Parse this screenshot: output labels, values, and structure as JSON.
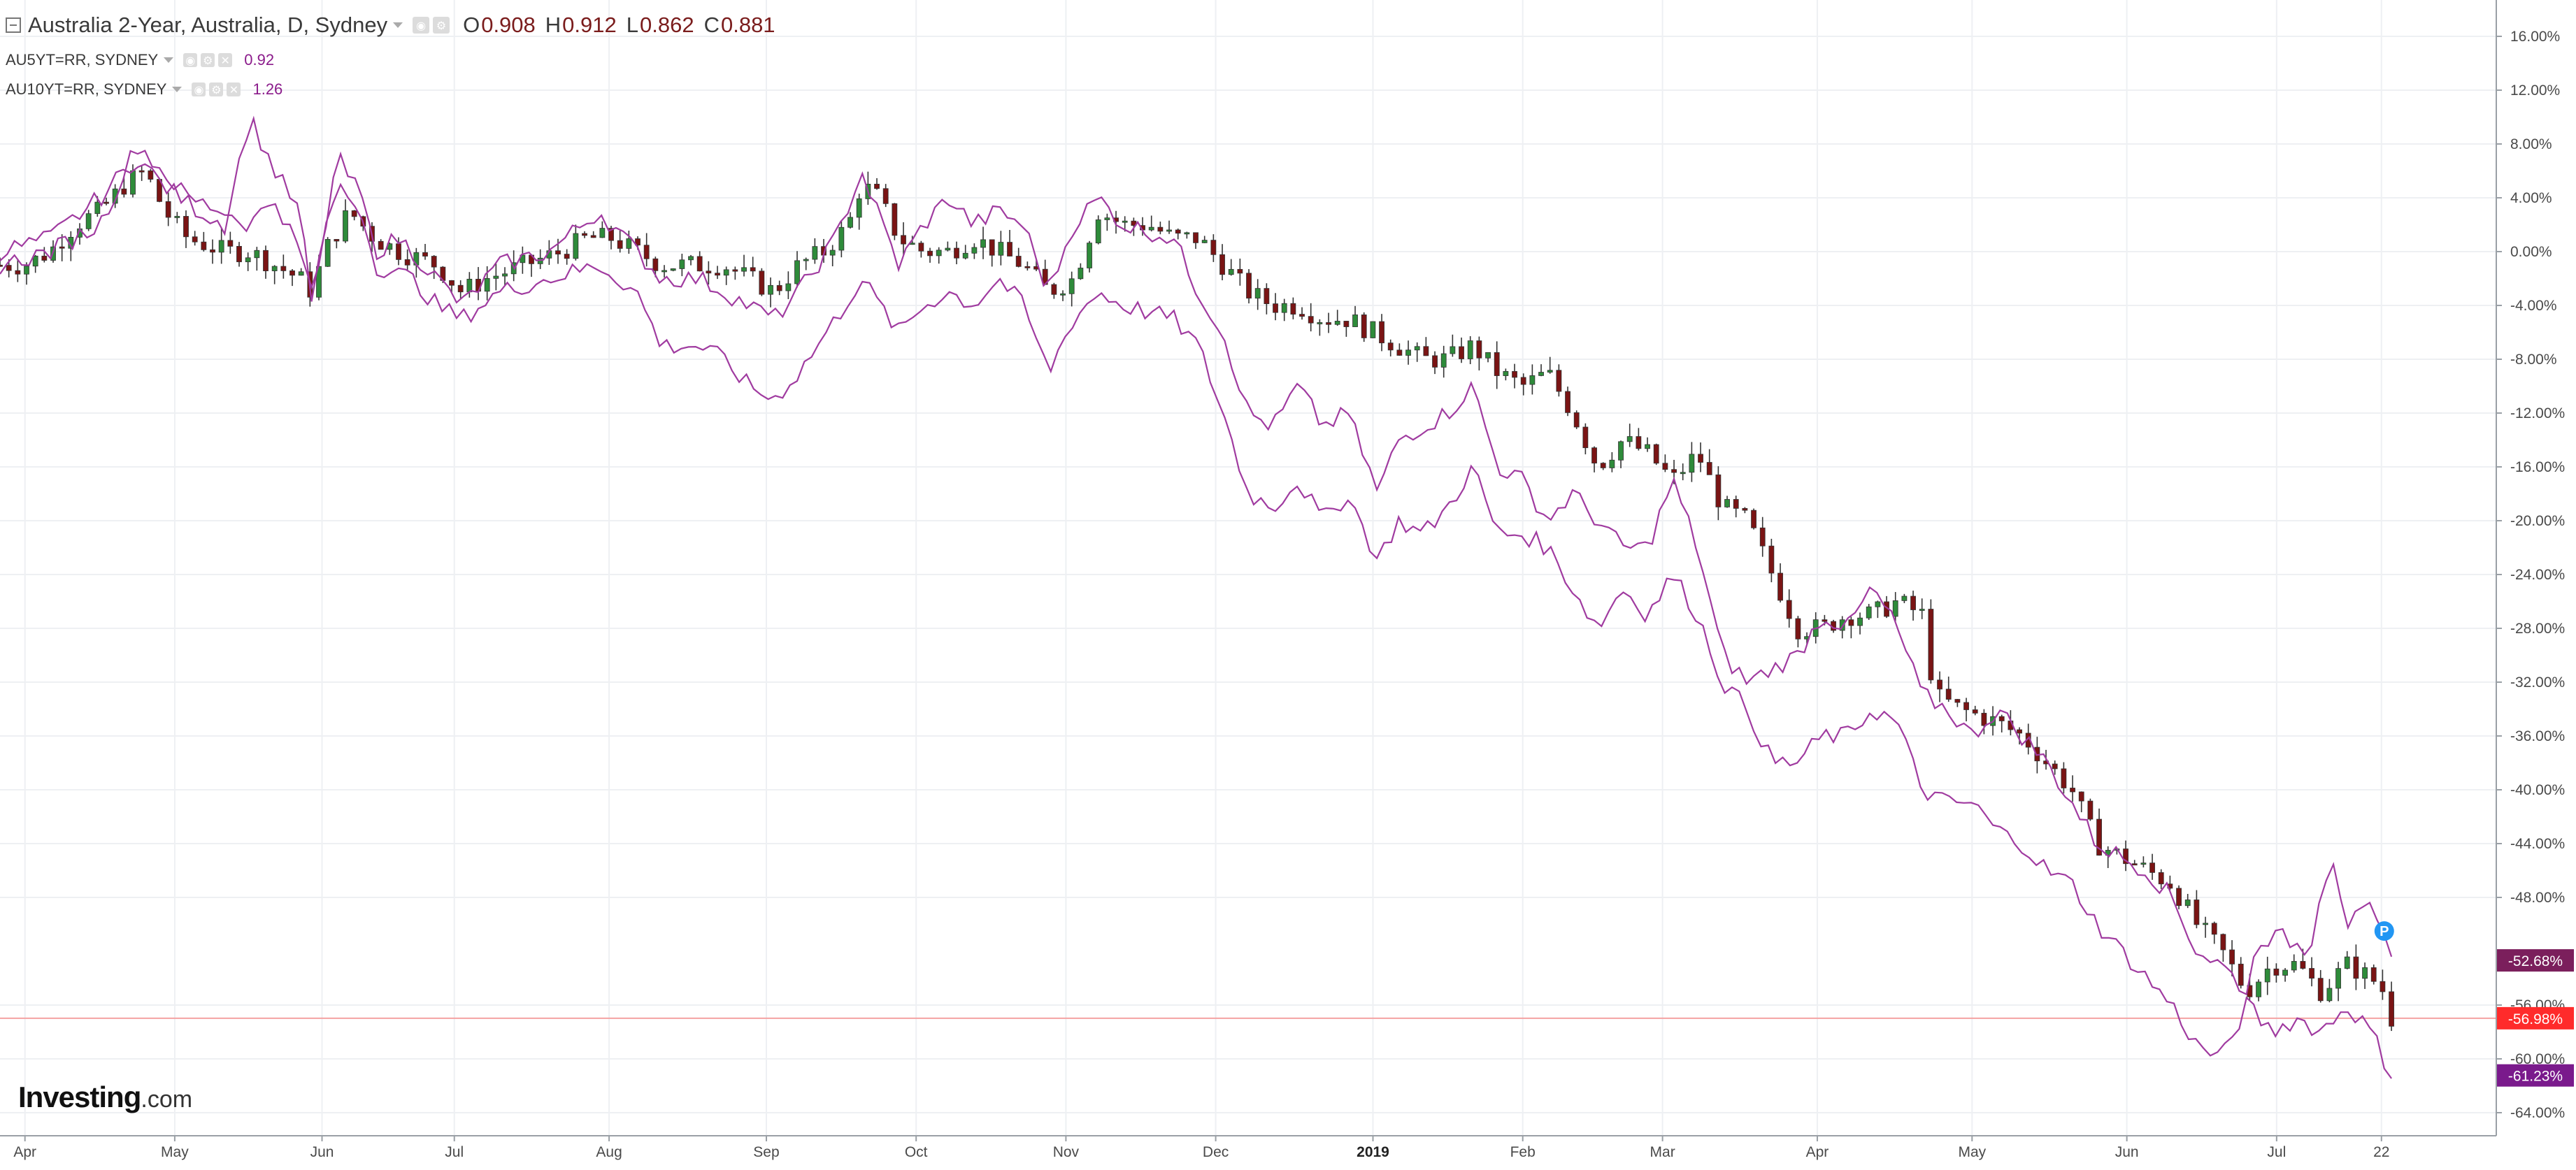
{
  "legend": {
    "title": "Australia 2-Year, Australia, D, Sydney",
    "ohlc": [
      {
        "key": "O",
        "value": "0.908"
      },
      {
        "key": "H",
        "value": "0.912"
      },
      {
        "key": "L",
        "value": "0.862"
      },
      {
        "key": "C",
        "value": "0.881"
      }
    ],
    "sub_series": [
      {
        "label": "AU5YT=RR, SYDNEY",
        "value": "0.92"
      },
      {
        "label": "AU10YT=RR, SYDNEY",
        "value": "1.26"
      }
    ]
  },
  "brand": {
    "name": "Investing",
    "suffix": ".com"
  },
  "colors": {
    "up_candle": "#2e8b3a",
    "down_candle": "#7a1414",
    "compare_line": "#a03ba0",
    "price_line": "#f4a3a3",
    "grid": "#eef0f3",
    "tag_5y": "#7b1f5c",
    "tag_2y": "#ff2b2b",
    "tag_10y": "#7a1a8c",
    "marker": "#2196f3"
  },
  "marker": {
    "label": "P"
  },
  "chart_data": {
    "type": "candlestick",
    "y_unit": "percent change",
    "ylim": [
      -66,
      17
    ],
    "y_ticks": [
      "16.00%",
      "12.00%",
      "8.00%",
      "4.00%",
      "0.00%",
      "-4.00%",
      "-8.00%",
      "-12.00%",
      "-16.00%",
      "-20.00%",
      "-24.00%",
      "-28.00%",
      "-32.00%",
      "-36.00%",
      "-40.00%",
      "-44.00%",
      "-48.00%",
      "-56.00%",
      "-60.00%",
      "-64.00%"
    ],
    "y_tick_values": [
      16,
      12,
      8,
      4,
      0,
      -4,
      -8,
      -12,
      -16,
      -20,
      -24,
      -28,
      -32,
      -36,
      -40,
      -44,
      -48,
      -56,
      -60,
      -64
    ],
    "x_ticks": [
      {
        "label": "Apr",
        "t": 0.01
      },
      {
        "label": "May",
        "t": 0.07
      },
      {
        "label": "Jun",
        "t": 0.129
      },
      {
        "label": "Jul",
        "t": 0.182
      },
      {
        "label": "Aug",
        "t": 0.244
      },
      {
        "label": "Sep",
        "t": 0.307
      },
      {
        "label": "Oct",
        "t": 0.367
      },
      {
        "label": "Nov",
        "t": 0.427
      },
      {
        "label": "Dec",
        "t": 0.487
      },
      {
        "label": "2019",
        "t": 0.55,
        "bold": true
      },
      {
        "label": "Feb",
        "t": 0.61
      },
      {
        "label": "Mar",
        "t": 0.666
      },
      {
        "label": "Apr",
        "t": 0.728
      },
      {
        "label": "May",
        "t": 0.79
      },
      {
        "label": "Jun",
        "t": 0.852
      },
      {
        "label": "Jul",
        "t": 0.912
      },
      {
        "label": "22",
        "t": 0.954
      }
    ],
    "grid": true,
    "last_value_tags": [
      {
        "series": "AU5YT=RR, SYDNEY",
        "value": -52.68,
        "label": "-52.68%"
      },
      {
        "series": "Australia 2-Year",
        "value": -56.98,
        "label": "-56.98%"
      },
      {
        "series": "AU10YT=RR, SYDNEY",
        "value": -61.23,
        "label": "-61.23%"
      }
    ],
    "price_line_value": -56.98,
    "series": [
      {
        "name": "Australia 2-Year",
        "style": "candles",
        "points": [
          [
            0.0,
            -1
          ],
          [
            0.01,
            -1
          ],
          [
            0.02,
            0
          ],
          [
            0.03,
            2
          ],
          [
            0.04,
            3
          ],
          [
            0.05,
            5
          ],
          [
            0.058,
            6
          ],
          [
            0.066,
            3
          ],
          [
            0.075,
            1
          ],
          [
            0.09,
            0
          ],
          [
            0.1,
            0
          ],
          [
            0.11,
            -1
          ],
          [
            0.12,
            -2
          ],
          [
            0.125,
            -3
          ],
          [
            0.13,
            0
          ],
          [
            0.14,
            3
          ],
          [
            0.15,
            1
          ],
          [
            0.16,
            0
          ],
          [
            0.175,
            -1
          ],
          [
            0.185,
            -3
          ],
          [
            0.195,
            -2
          ],
          [
            0.21,
            -1
          ],
          [
            0.225,
            0
          ],
          [
            0.235,
            1
          ],
          [
            0.245,
            1
          ],
          [
            0.255,
            0
          ],
          [
            0.265,
            -1
          ],
          [
            0.28,
            -1
          ],
          [
            0.29,
            -1
          ],
          [
            0.3,
            -2
          ],
          [
            0.31,
            -3
          ],
          [
            0.32,
            -1
          ],
          [
            0.33,
            0
          ],
          [
            0.34,
            2
          ],
          [
            0.345,
            5
          ],
          [
            0.352,
            4
          ],
          [
            0.36,
            1
          ],
          [
            0.37,
            0
          ],
          [
            0.38,
            0
          ],
          [
            0.39,
            1
          ],
          [
            0.4,
            0
          ],
          [
            0.41,
            -1
          ],
          [
            0.42,
            -3
          ],
          [
            0.43,
            -2
          ],
          [
            0.44,
            3
          ],
          [
            0.45,
            2
          ],
          [
            0.46,
            2
          ],
          [
            0.47,
            1
          ],
          [
            0.48,
            1
          ],
          [
            0.49,
            -1
          ],
          [
            0.5,
            -3
          ],
          [
            0.51,
            -4
          ],
          [
            0.52,
            -4
          ],
          [
            0.53,
            -5
          ],
          [
            0.54,
            -5
          ],
          [
            0.55,
            -6
          ],
          [
            0.56,
            -7
          ],
          [
            0.57,
            -8
          ],
          [
            0.58,
            -8
          ],
          [
            0.59,
            -7
          ],
          [
            0.6,
            -9
          ],
          [
            0.61,
            -10
          ],
          [
            0.62,
            -9
          ],
          [
            0.63,
            -12
          ],
          [
            0.64,
            -16
          ],
          [
            0.65,
            -14
          ],
          [
            0.66,
            -15
          ],
          [
            0.67,
            -17
          ],
          [
            0.68,
            -15
          ],
          [
            0.69,
            -19
          ],
          [
            0.7,
            -20
          ],
          [
            0.71,
            -24
          ],
          [
            0.72,
            -28
          ],
          [
            0.73,
            -28
          ],
          [
            0.74,
            -27
          ],
          [
            0.75,
            -27
          ],
          [
            0.76,
            -26
          ],
          [
            0.77,
            -27
          ],
          [
            0.775,
            -33
          ],
          [
            0.785,
            -34
          ],
          [
            0.8,
            -35
          ],
          [
            0.81,
            -36
          ],
          [
            0.82,
            -38
          ],
          [
            0.83,
            -40
          ],
          [
            0.84,
            -44
          ],
          [
            0.85,
            -45
          ],
          [
            0.86,
            -46
          ],
          [
            0.87,
            -47
          ],
          [
            0.88,
            -50
          ],
          [
            0.89,
            -52
          ],
          [
            0.9,
            -55
          ],
          [
            0.91,
            -53
          ],
          [
            0.92,
            -53
          ],
          [
            0.93,
            -55
          ],
          [
            0.94,
            -53
          ],
          [
            0.95,
            -54
          ],
          [
            0.955,
            -55
          ],
          [
            0.958,
            -57
          ]
        ]
      },
      {
        "name": "AU5YT=RR, SYDNEY",
        "style": "line",
        "points": [
          [
            0.0,
            0
          ],
          [
            0.02,
            1
          ],
          [
            0.04,
            4
          ],
          [
            0.055,
            7
          ],
          [
            0.065,
            5
          ],
          [
            0.08,
            3
          ],
          [
            0.09,
            2
          ],
          [
            0.1,
            10
          ],
          [
            0.11,
            6
          ],
          [
            0.12,
            3
          ],
          [
            0.125,
            -4
          ],
          [
            0.135,
            7
          ],
          [
            0.145,
            4
          ],
          [
            0.15,
            0
          ],
          [
            0.16,
            1
          ],
          [
            0.175,
            -2
          ],
          [
            0.185,
            -4
          ],
          [
            0.2,
            -1
          ],
          [
            0.22,
            0
          ],
          [
            0.24,
            3
          ],
          [
            0.255,
            0
          ],
          [
            0.265,
            -2
          ],
          [
            0.28,
            -2
          ],
          [
            0.29,
            -3
          ],
          [
            0.3,
            -4
          ],
          [
            0.31,
            -5
          ],
          [
            0.32,
            -3
          ],
          [
            0.335,
            1
          ],
          [
            0.345,
            6
          ],
          [
            0.36,
            -1
          ],
          [
            0.37,
            2
          ],
          [
            0.38,
            4
          ],
          [
            0.39,
            2
          ],
          [
            0.4,
            3
          ],
          [
            0.41,
            2
          ],
          [
            0.42,
            -3
          ],
          [
            0.43,
            2
          ],
          [
            0.44,
            4
          ],
          [
            0.45,
            2
          ],
          [
            0.47,
            1
          ],
          [
            0.48,
            -3
          ],
          [
            0.49,
            -6
          ],
          [
            0.5,
            -12
          ],
          [
            0.51,
            -13
          ],
          [
            0.52,
            -10
          ],
          [
            0.53,
            -13
          ],
          [
            0.54,
            -12
          ],
          [
            0.552,
            -18
          ],
          [
            0.56,
            -14
          ],
          [
            0.57,
            -13
          ],
          [
            0.58,
            -12
          ],
          [
            0.59,
            -10
          ],
          [
            0.6,
            -16
          ],
          [
            0.61,
            -17
          ],
          [
            0.62,
            -20
          ],
          [
            0.63,
            -18
          ],
          [
            0.64,
            -20
          ],
          [
            0.65,
            -22
          ],
          [
            0.66,
            -22
          ],
          [
            0.67,
            -17
          ],
          [
            0.68,
            -22
          ],
          [
            0.69,
            -30
          ],
          [
            0.7,
            -32
          ],
          [
            0.71,
            -31
          ],
          [
            0.72,
            -30
          ],
          [
            0.73,
            -27
          ],
          [
            0.74,
            -28
          ],
          [
            0.75,
            -25
          ],
          [
            0.76,
            -28
          ],
          [
            0.77,
            -33
          ],
          [
            0.78,
            -34
          ],
          [
            0.79,
            -36
          ],
          [
            0.8,
            -34
          ],
          [
            0.81,
            -36
          ],
          [
            0.82,
            -38
          ],
          [
            0.83,
            -41
          ],
          [
            0.84,
            -44
          ],
          [
            0.85,
            -45
          ],
          [
            0.86,
            -46
          ],
          [
            0.87,
            -48
          ],
          [
            0.88,
            -52
          ],
          [
            0.89,
            -53
          ],
          [
            0.9,
            -55
          ],
          [
            0.905,
            -51
          ],
          [
            0.915,
            -51
          ],
          [
            0.925,
            -52
          ],
          [
            0.93,
            -47
          ],
          [
            0.935,
            -45
          ],
          [
            0.94,
            -50
          ],
          [
            0.95,
            -49
          ],
          [
            0.958,
            -52.68
          ]
        ]
      },
      {
        "name": "AU10YT=RR, SYDNEY",
        "style": "line",
        "points": [
          [
            0.0,
            -1
          ],
          [
            0.02,
            0
          ],
          [
            0.04,
            2
          ],
          [
            0.055,
            8
          ],
          [
            0.065,
            6
          ],
          [
            0.075,
            4
          ],
          [
            0.09,
            3
          ],
          [
            0.1,
            2
          ],
          [
            0.11,
            4
          ],
          [
            0.12,
            0
          ],
          [
            0.125,
            -3
          ],
          [
            0.135,
            5
          ],
          [
            0.145,
            3
          ],
          [
            0.15,
            -1
          ],
          [
            0.165,
            -2
          ],
          [
            0.175,
            -4
          ],
          [
            0.185,
            -5
          ],
          [
            0.2,
            -3
          ],
          [
            0.22,
            -2
          ],
          [
            0.24,
            -1
          ],
          [
            0.255,
            -3
          ],
          [
            0.265,
            -7
          ],
          [
            0.28,
            -7
          ],
          [
            0.29,
            -8
          ],
          [
            0.3,
            -10
          ],
          [
            0.31,
            -11
          ],
          [
            0.32,
            -9
          ],
          [
            0.335,
            -5
          ],
          [
            0.345,
            -2
          ],
          [
            0.36,
            -6
          ],
          [
            0.37,
            -4
          ],
          [
            0.38,
            -3
          ],
          [
            0.39,
            -4
          ],
          [
            0.4,
            -2
          ],
          [
            0.41,
            -4
          ],
          [
            0.42,
            -9
          ],
          [
            0.43,
            -5
          ],
          [
            0.44,
            -3
          ],
          [
            0.45,
            -4
          ],
          [
            0.47,
            -5
          ],
          [
            0.48,
            -7
          ],
          [
            0.49,
            -12
          ],
          [
            0.5,
            -18
          ],
          [
            0.51,
            -19
          ],
          [
            0.52,
            -17
          ],
          [
            0.53,
            -20
          ],
          [
            0.54,
            -18
          ],
          [
            0.552,
            -23
          ],
          [
            0.56,
            -20
          ],
          [
            0.57,
            -21
          ],
          [
            0.58,
            -19
          ],
          [
            0.59,
            -16
          ],
          [
            0.6,
            -21
          ],
          [
            0.61,
            -21
          ],
          [
            0.62,
            -22
          ],
          [
            0.63,
            -25
          ],
          [
            0.64,
            -28
          ],
          [
            0.65,
            -25
          ],
          [
            0.66,
            -27
          ],
          [
            0.67,
            -24
          ],
          [
            0.68,
            -27
          ],
          [
            0.69,
            -32
          ],
          [
            0.7,
            -34
          ],
          [
            0.71,
            -38
          ],
          [
            0.72,
            -38
          ],
          [
            0.73,
            -36
          ],
          [
            0.74,
            -36
          ],
          [
            0.75,
            -34
          ],
          [
            0.76,
            -35
          ],
          [
            0.77,
            -40
          ],
          [
            0.78,
            -41
          ],
          [
            0.79,
            -41
          ],
          [
            0.8,
            -43
          ],
          [
            0.81,
            -44
          ],
          [
            0.82,
            -46
          ],
          [
            0.83,
            -47
          ],
          [
            0.84,
            -50
          ],
          [
            0.85,
            -52
          ],
          [
            0.86,
            -54
          ],
          [
            0.87,
            -56
          ],
          [
            0.88,
            -59
          ],
          [
            0.89,
            -60
          ],
          [
            0.9,
            -56
          ],
          [
            0.91,
            -58
          ],
          [
            0.92,
            -57
          ],
          [
            0.93,
            -58
          ],
          [
            0.94,
            -56
          ],
          [
            0.95,
            -58
          ],
          [
            0.958,
            -61.23
          ]
        ]
      }
    ]
  }
}
